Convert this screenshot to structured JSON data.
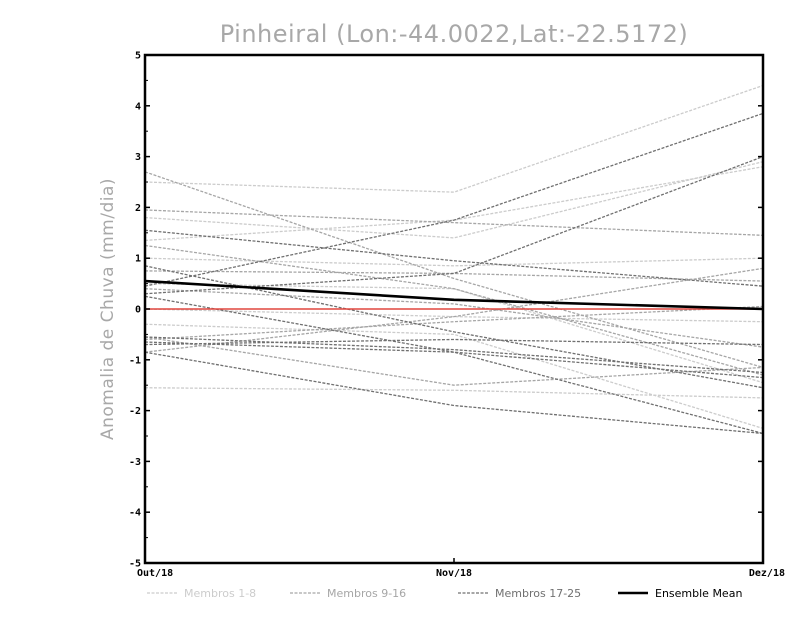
{
  "chart_data": {
    "type": "line",
    "title": "Pinheiral (Lon:-44.0022,Lat:-22.5172)",
    "xlabel": "",
    "ylabel": "Anomalia de Chuva (mm/dia)",
    "x": [
      "Out/18",
      "Nov/18",
      "Dez/18"
    ],
    "y_ticks": [
      "5",
      "4",
      "3",
      "2",
      "1",
      "0",
      "-1",
      "-2",
      "-3",
      "-4",
      "-5"
    ],
    "ylim": [
      -5,
      5
    ],
    "zero_line_color": "#e0463f",
    "legend": [
      {
        "label": "Membros 1-8",
        "color": "#cccccc",
        "style": "dashed"
      },
      {
        "label": "Membros 9-16",
        "color": "#a6a6a6",
        "style": "dashed"
      },
      {
        "label": "Membros 17-25",
        "color": "#707070",
        "style": "dashed"
      },
      {
        "label": "Ensemble Mean",
        "color": "#000000",
        "style": "solid"
      }
    ],
    "groups": [
      {
        "color": "#cccccc",
        "lines": [
          [
            2.5,
            2.3,
            4.4
          ],
          [
            1.35,
            1.75,
            2.8
          ],
          [
            1.8,
            1.4,
            2.9
          ],
          [
            1.0,
            0.85,
            1.0
          ],
          [
            -1.55,
            -1.6,
            -1.75
          ],
          [
            0.5,
            0.4,
            -1.45
          ],
          [
            -0.3,
            -0.5,
            -2.35
          ],
          [
            0.0,
            -0.15,
            -0.25
          ]
        ]
      },
      {
        "color": "#a6a6a6",
        "lines": [
          [
            1.95,
            1.7,
            1.45
          ],
          [
            1.25,
            0.4,
            -1.3
          ],
          [
            0.75,
            0.7,
            0.55
          ],
          [
            -0.85,
            -0.15,
            0.8
          ],
          [
            -0.55,
            -1.5,
            -1.15
          ],
          [
            0.4,
            0.1,
            -0.75
          ],
          [
            2.7,
            0.6,
            -1.15
          ],
          [
            -0.6,
            -0.25,
            0.05
          ]
        ]
      },
      {
        "color": "#707070",
        "lines": [
          [
            0.45,
            1.75,
            3.85
          ],
          [
            1.55,
            0.95,
            0.45
          ],
          [
            0.3,
            0.7,
            3.0
          ],
          [
            -0.7,
            -0.6,
            -0.7
          ],
          [
            -0.55,
            -0.8,
            -1.25
          ],
          [
            0.85,
            -0.45,
            -1.55
          ],
          [
            0.25,
            -0.85,
            -2.45
          ],
          [
            -0.85,
            -1.9,
            -2.45
          ],
          [
            -0.65,
            -0.85,
            -1.35
          ]
        ]
      }
    ],
    "ensemble_mean": [
      0.55,
      0.18,
      0.0
    ]
  }
}
